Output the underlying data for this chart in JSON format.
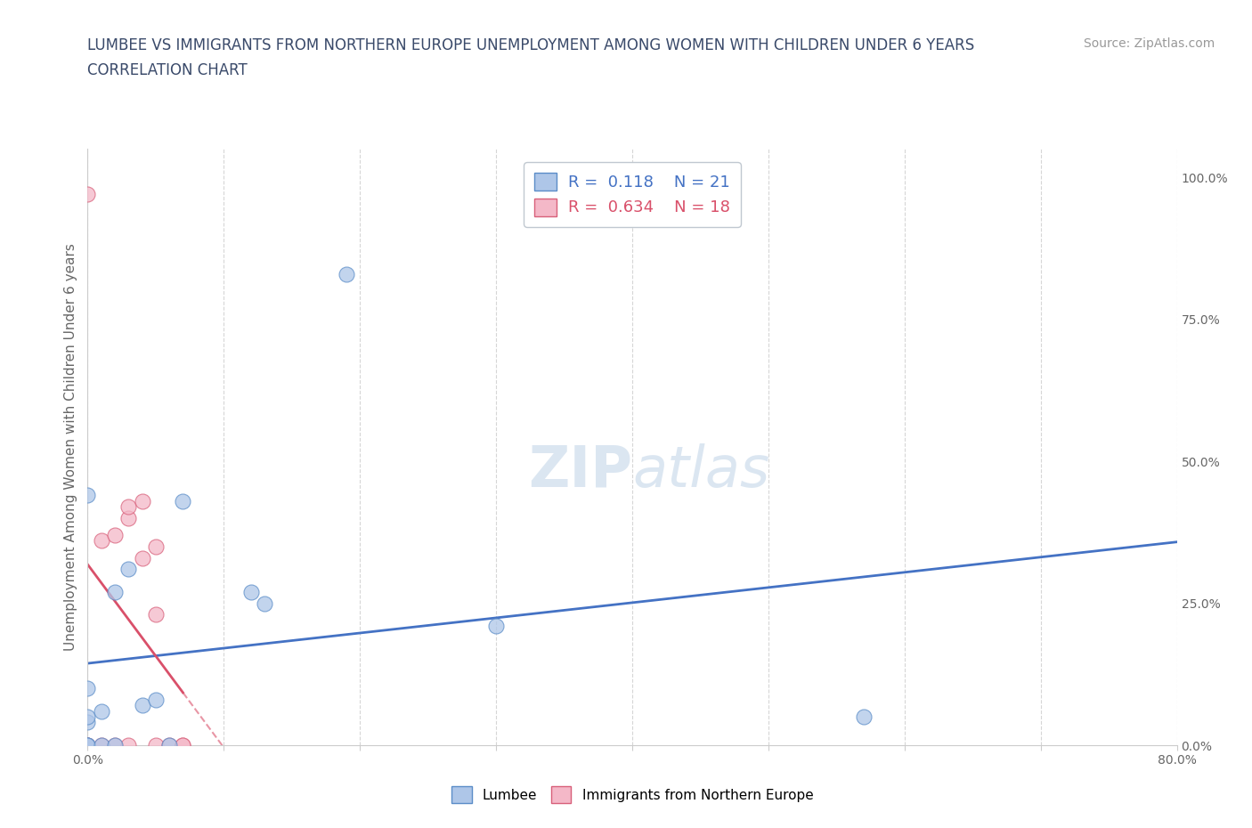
{
  "title_line1": "LUMBEE VS IMMIGRANTS FROM NORTHERN EUROPE UNEMPLOYMENT AMONG WOMEN WITH CHILDREN UNDER 6 YEARS",
  "title_line2": "CORRELATION CHART",
  "source": "Source: ZipAtlas.com",
  "ylabel": "Unemployment Among Women with Children Under 6 years",
  "xlim": [
    0.0,
    0.8
  ],
  "ylim": [
    0.0,
    1.05
  ],
  "xtick_positions": [
    0.0,
    0.1,
    0.2,
    0.3,
    0.4,
    0.5,
    0.6,
    0.7,
    0.8
  ],
  "xtick_labels": [
    "0.0%",
    "",
    "",
    "",
    "",
    "",
    "",
    "",
    "80.0%"
  ],
  "ytick_right_values": [
    0.0,
    0.25,
    0.5,
    0.75,
    1.0
  ],
  "ytick_right_labels": [
    "0.0%",
    "25.0%",
    "50.0%",
    "75.0%",
    "100.0%"
  ],
  "lumbee_color": "#aec6e8",
  "lumbee_edge": "#5b8dc8",
  "immigrants_color": "#f4b8c8",
  "immigrants_edge": "#d8607a",
  "lumbee_R": 0.118,
  "lumbee_N": 21,
  "immigrants_R": 0.634,
  "immigrants_N": 18,
  "lumbee_line_color": "#4472c4",
  "immigrants_line_color": "#d9506a",
  "lumbee_points_x": [
    0.0,
    0.0,
    0.0,
    0.0,
    0.0,
    0.0,
    0.0,
    0.01,
    0.01,
    0.02,
    0.02,
    0.03,
    0.04,
    0.05,
    0.06,
    0.07,
    0.12,
    0.13,
    0.19,
    0.3,
    0.57
  ],
  "lumbee_points_y": [
    0.0,
    0.0,
    0.0,
    0.04,
    0.05,
    0.1,
    0.44,
    0.0,
    0.06,
    0.0,
    0.27,
    0.31,
    0.07,
    0.08,
    0.0,
    0.43,
    0.27,
    0.25,
    0.83,
    0.21,
    0.05
  ],
  "immigrants_points_x": [
    0.0,
    0.0,
    0.0,
    0.01,
    0.01,
    0.02,
    0.02,
    0.03,
    0.03,
    0.03,
    0.04,
    0.04,
    0.05,
    0.05,
    0.05,
    0.06,
    0.07,
    0.07
  ],
  "immigrants_points_y": [
    0.0,
    0.0,
    0.97,
    0.0,
    0.36,
    0.0,
    0.37,
    0.0,
    0.4,
    0.42,
    0.33,
    0.43,
    0.0,
    0.23,
    0.35,
    0.0,
    0.0,
    0.0
  ],
  "watermark_zip": "ZIP",
  "watermark_atlas": "atlas",
  "background_color": "#ffffff",
  "grid_color": "#cccccc",
  "legend_box_color": "#e8f0f8",
  "legend_box_edge": "#b0b0b0"
}
